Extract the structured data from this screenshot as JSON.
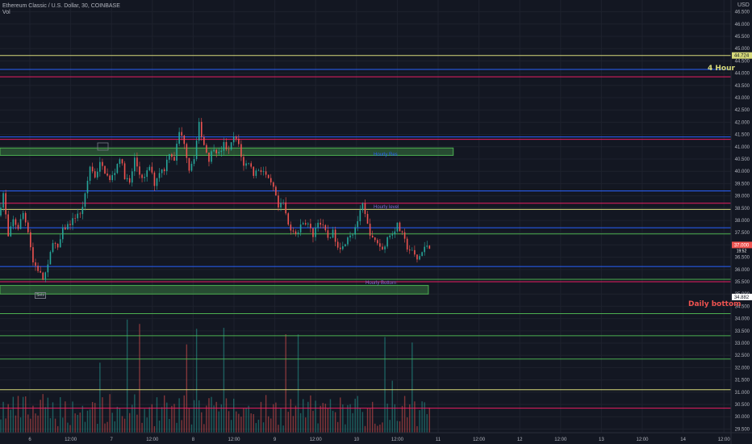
{
  "header": {
    "title": "Ethereum Classic / U.S. Dollar, 30, COINBASE",
    "volume_label": "Vol"
  },
  "axis": {
    "currency": "USD"
  },
  "annotations": {
    "four_hour": "4 Hour",
    "daily_bottom": "Daily bottom",
    "hourly_res": "Hourly Res",
    "hourly_level": "Hourly level",
    "hourly_bottom": "Hourly Bottom",
    "small_box": "Sets"
  },
  "price_tags": {
    "upper": "44.724",
    "current": "37.000",
    "current_sub": "19:52",
    "lower": "34.882"
  },
  "colors": {
    "bg": "#131722",
    "up": "#26a69a",
    "down": "#ef5350",
    "yellow": "#d6d97a",
    "pink": "#e91e63",
    "blue": "#2962ff",
    "green": "#4caf50"
  },
  "chart_data": {
    "type": "candlestick",
    "y_ticks": [
      "46.500",
      "46.000",
      "45.500",
      "45.000",
      "44.500",
      "44.000",
      "43.500",
      "43.000",
      "42.500",
      "42.000",
      "41.500",
      "41.000",
      "40.500",
      "40.000",
      "39.500",
      "39.000",
      "38.500",
      "38.000",
      "37.500",
      "37.000",
      "36.500",
      "36.000",
      "35.500",
      "35.000",
      "34.500",
      "34.000",
      "33.500",
      "33.000",
      "32.500",
      "32.000",
      "31.500",
      "31.000",
      "30.500",
      "30.000",
      "29.500"
    ],
    "x_ticks": [
      "6",
      "12:00",
      "7",
      "12:00",
      "8",
      "12:00",
      "9",
      "12:00",
      "10",
      "12:00",
      "11",
      "12:00",
      "12",
      "12:00",
      "13",
      "12:00",
      "14",
      "12:00"
    ],
    "horizontal_levels": [
      {
        "price": 44.72,
        "color": "yellow"
      },
      {
        "price": 44.15,
        "color": "blue"
      },
      {
        "price": 43.85,
        "color": "pink"
      },
      {
        "price": 41.4,
        "color": "blue"
      },
      {
        "price": 41.3,
        "color": "pink"
      },
      {
        "price": 39.2,
        "color": "blue"
      },
      {
        "price": 38.7,
        "color": "pink"
      },
      {
        "price": 38.45,
        "color": "yellow"
      },
      {
        "price": 37.7,
        "color": "blue"
      },
      {
        "price": 37.45,
        "color": "green"
      },
      {
        "price": 36.12,
        "color": "blue"
      },
      {
        "price": 35.6,
        "color": "green"
      },
      {
        "price": 35.5,
        "color": "pink"
      },
      {
        "price": 34.2,
        "color": "green"
      },
      {
        "price": 33.3,
        "color": "green"
      },
      {
        "price": 32.35,
        "color": "green"
      },
      {
        "price": 31.1,
        "color": "yellow"
      },
      {
        "price": 30.35,
        "color": "pink"
      }
    ],
    "zones": [
      {
        "name": "hourly-res",
        "from": 40.65,
        "to": 40.95,
        "x_end": 0.62
      },
      {
        "name": "hourly-bottom",
        "from": 35.0,
        "to": 35.35,
        "x_end": 0.586
      }
    ],
    "price_path": [
      [
        0,
        38.2
      ],
      [
        4,
        39.1
      ],
      [
        8,
        37.3
      ],
      [
        12,
        38.0
      ],
      [
        16,
        37.7
      ],
      [
        20,
        38.3
      ],
      [
        24,
        37.6
      ],
      [
        28,
        36.3
      ],
      [
        32,
        36.0
      ],
      [
        36,
        35.6
      ],
      [
        40,
        36.1
      ],
      [
        44,
        37.2
      ],
      [
        48,
        36.8
      ],
      [
        52,
        37.6
      ],
      [
        56,
        37.8
      ],
      [
        60,
        38.0
      ],
      [
        64,
        38.3
      ],
      [
        66,
        38.2
      ],
      [
        70,
        39.0
      ],
      [
        74,
        40.2
      ],
      [
        78,
        39.8
      ],
      [
        82,
        40.3
      ],
      [
        86,
        40.0
      ],
      [
        90,
        39.6
      ],
      [
        94,
        40.0
      ],
      [
        98,
        40.6
      ],
      [
        102,
        39.8
      ],
      [
        106,
        39.5
      ],
      [
        110,
        40.5
      ],
      [
        114,
        39.9
      ],
      [
        118,
        39.7
      ],
      [
        122,
        40.2
      ],
      [
        126,
        39.5
      ],
      [
        130,
        40.0
      ],
      [
        134,
        40.1
      ],
      [
        138,
        40.8
      ],
      [
        142,
        40.5
      ],
      [
        146,
        41.6
      ],
      [
        150,
        41.2
      ],
      [
        154,
        40.1
      ],
      [
        158,
        40.6
      ],
      [
        162,
        41.9
      ],
      [
        166,
        41.1
      ],
      [
        170,
        40.5
      ],
      [
        174,
        41.0
      ],
      [
        178,
        40.7
      ],
      [
        182,
        41.1
      ],
      [
        186,
        40.8
      ],
      [
        190,
        41.4
      ],
      [
        194,
        41.1
      ],
      [
        198,
        40.2
      ],
      [
        202,
        40.4
      ],
      [
        206,
        39.9
      ],
      [
        210,
        40.1
      ],
      [
        214,
        40.0
      ],
      [
        218,
        39.6
      ],
      [
        222,
        39.3
      ],
      [
        226,
        38.5
      ],
      [
        230,
        38.7
      ],
      [
        234,
        37.8
      ],
      [
        238,
        37.6
      ],
      [
        242,
        37.5
      ],
      [
        246,
        38.0
      ],
      [
        250,
        37.8
      ],
      [
        254,
        37.4
      ],
      [
        258,
        38.0
      ],
      [
        262,
        37.7
      ],
      [
        266,
        37.3
      ],
      [
        270,
        37.5
      ],
      [
        274,
        37.0
      ],
      [
        278,
        36.9
      ],
      [
        282,
        37.4
      ],
      [
        286,
        37.5
      ],
      [
        290,
        38.0
      ],
      [
        294,
        38.6
      ],
      [
        298,
        37.8
      ],
      [
        302,
        37.2
      ],
      [
        306,
        37.1
      ],
      [
        310,
        36.8
      ],
      [
        314,
        37.3
      ],
      [
        318,
        37.5
      ],
      [
        322,
        37.8
      ],
      [
        326,
        37.4
      ],
      [
        330,
        36.9
      ],
      [
        334,
        36.7
      ],
      [
        338,
        36.4
      ],
      [
        342,
        36.7
      ],
      [
        346,
        37.0
      ],
      [
        347,
        36.95
      ]
    ],
    "x_domain": [
      0,
      590
    ],
    "y_domain": [
      29.35,
      46.98
    ]
  }
}
